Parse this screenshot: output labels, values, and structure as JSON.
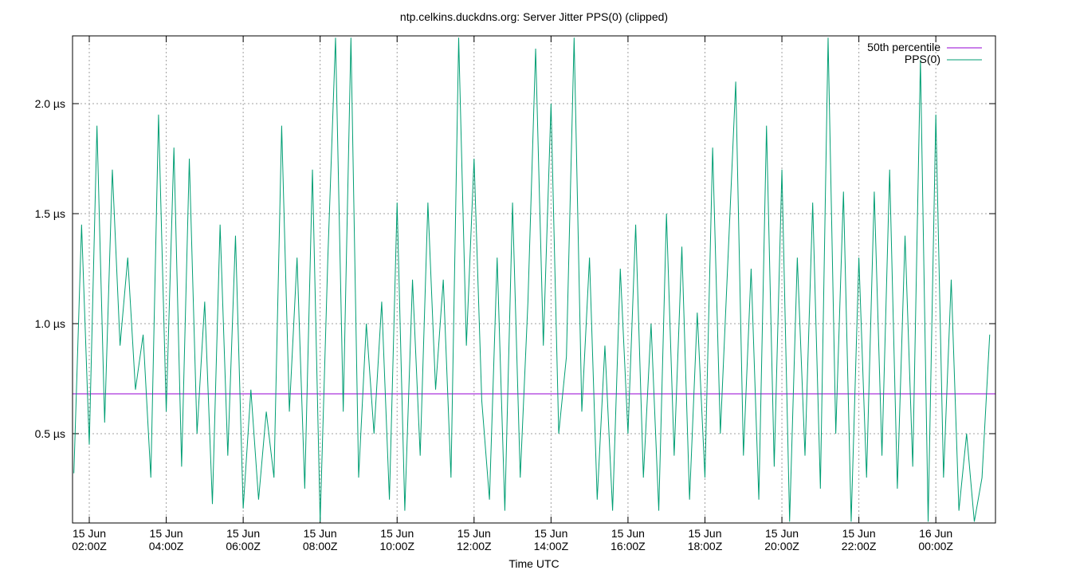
{
  "chart_data": {
    "type": "line",
    "title": "ntp.celkins.duckdns.org: Server Jitter PPS(0) (clipped)",
    "x_label": "Time UTC",
    "xlim": [
      1.565,
      25.55
    ],
    "ylim": [
      0.094,
      2.308
    ],
    "xticks": [
      {
        "value": 2,
        "label": "15 Jun\n02:00Z"
      },
      {
        "value": 4,
        "label": "15 Jun\n04:00Z"
      },
      {
        "value": 6,
        "label": "15 Jun\n06:00Z"
      },
      {
        "value": 8,
        "label": "15 Jun\n08:00Z"
      },
      {
        "value": 10,
        "label": "15 Jun\n10:00Z"
      },
      {
        "value": 12,
        "label": "15 Jun\n12:00Z"
      },
      {
        "value": 14,
        "label": "15 Jun\n14:00Z"
      },
      {
        "value": 16,
        "label": "15 Jun\n16:00Z"
      },
      {
        "value": 18,
        "label": "15 Jun\n18:00Z"
      },
      {
        "value": 20,
        "label": "15 Jun\n20:00Z"
      },
      {
        "value": 22,
        "label": "15 Jun\n22:00Z"
      },
      {
        "value": 24,
        "label": "16 Jun\n00:00Z"
      }
    ],
    "yticks": [
      {
        "value": 0.5,
        "label": "0.5 µs"
      },
      {
        "value": 1.0,
        "label": "1.0 µs"
      },
      {
        "value": 1.5,
        "label": "1.5 µs"
      },
      {
        "value": 2.0,
        "label": "2.0 µs"
      }
    ],
    "grid": true,
    "legend": "top-right",
    "series": [
      {
        "name": "50th percentile",
        "color": "#9400d3",
        "x": [
          1.565,
          25.55
        ],
        "values": [
          0.681,
          0.681
        ]
      },
      {
        "name": "PPS(0)",
        "color": "#009e73",
        "x": [
          1.6,
          1.8,
          2.0,
          2.2,
          2.4,
          2.6,
          2.8,
          3.0,
          3.2,
          3.4,
          3.6,
          3.8,
          4.0,
          4.2,
          4.4,
          4.6,
          4.8,
          5.0,
          5.2,
          5.4,
          5.6,
          5.8,
          6.0,
          6.2,
          6.4,
          6.6,
          6.8,
          7.0,
          7.2,
          7.4,
          7.6,
          7.8,
          8.0,
          8.2,
          8.4,
          8.6,
          8.8,
          9.0,
          9.2,
          9.4,
          9.6,
          9.8,
          10.0,
          10.2,
          10.4,
          10.6,
          10.8,
          11.0,
          11.2,
          11.4,
          11.6,
          11.8,
          12.0,
          12.2,
          12.4,
          12.6,
          12.8,
          13.0,
          13.2,
          13.4,
          13.6,
          13.8,
          14.0,
          14.2,
          14.4,
          14.6,
          14.8,
          15.0,
          15.2,
          15.4,
          15.6,
          15.8,
          16.0,
          16.2,
          16.4,
          16.6,
          16.8,
          17.0,
          17.2,
          17.4,
          17.6,
          17.8,
          18.0,
          18.2,
          18.4,
          18.6,
          18.8,
          19.0,
          19.2,
          19.4,
          19.6,
          19.8,
          20.0,
          20.2,
          20.4,
          20.6,
          20.8,
          21.0,
          21.2,
          21.4,
          21.6,
          21.8,
          22.0,
          22.2,
          22.4,
          22.6,
          22.8,
          23.0,
          23.2,
          23.4,
          23.6,
          23.8,
          24.0,
          24.2,
          24.4,
          24.6,
          24.8,
          25.0,
          25.2,
          25.4
        ],
        "values": [
          0.32,
          1.45,
          0.45,
          1.9,
          0.55,
          1.7,
          0.9,
          1.3,
          0.7,
          0.95,
          0.3,
          1.95,
          0.6,
          1.8,
          0.35,
          1.75,
          0.5,
          1.1,
          0.18,
          1.45,
          0.4,
          1.4,
          0.16,
          0.7,
          0.2,
          0.6,
          0.3,
          1.9,
          0.6,
          1.3,
          0.25,
          1.7,
          0.1,
          1.3,
          2.3,
          0.6,
          2.3,
          0.3,
          1.0,
          0.5,
          1.1,
          0.2,
          1.55,
          0.15,
          1.2,
          0.4,
          1.55,
          0.7,
          1.2,
          0.3,
          2.3,
          0.9,
          1.75,
          0.65,
          0.2,
          1.3,
          0.15,
          1.55,
          0.3,
          1.1,
          2.25,
          0.9,
          2.0,
          0.5,
          0.85,
          2.3,
          0.6,
          1.3,
          0.2,
          0.9,
          0.15,
          1.25,
          0.5,
          1.45,
          0.3,
          1.0,
          0.15,
          1.5,
          0.4,
          1.35,
          0.2,
          1.05,
          0.3,
          1.8,
          0.5,
          1.3,
          2.1,
          0.4,
          1.25,
          0.2,
          1.9,
          0.35,
          1.7,
          0.1,
          1.3,
          0.4,
          1.55,
          0.25,
          2.3,
          0.5,
          1.6,
          0.1,
          1.3,
          0.3,
          1.6,
          0.4,
          1.7,
          0.25,
          1.4,
          0.35,
          2.2,
          0.1,
          1.95,
          0.3,
          1.2,
          0.15,
          0.5,
          0.1,
          0.3,
          0.95
        ]
      }
    ]
  }
}
